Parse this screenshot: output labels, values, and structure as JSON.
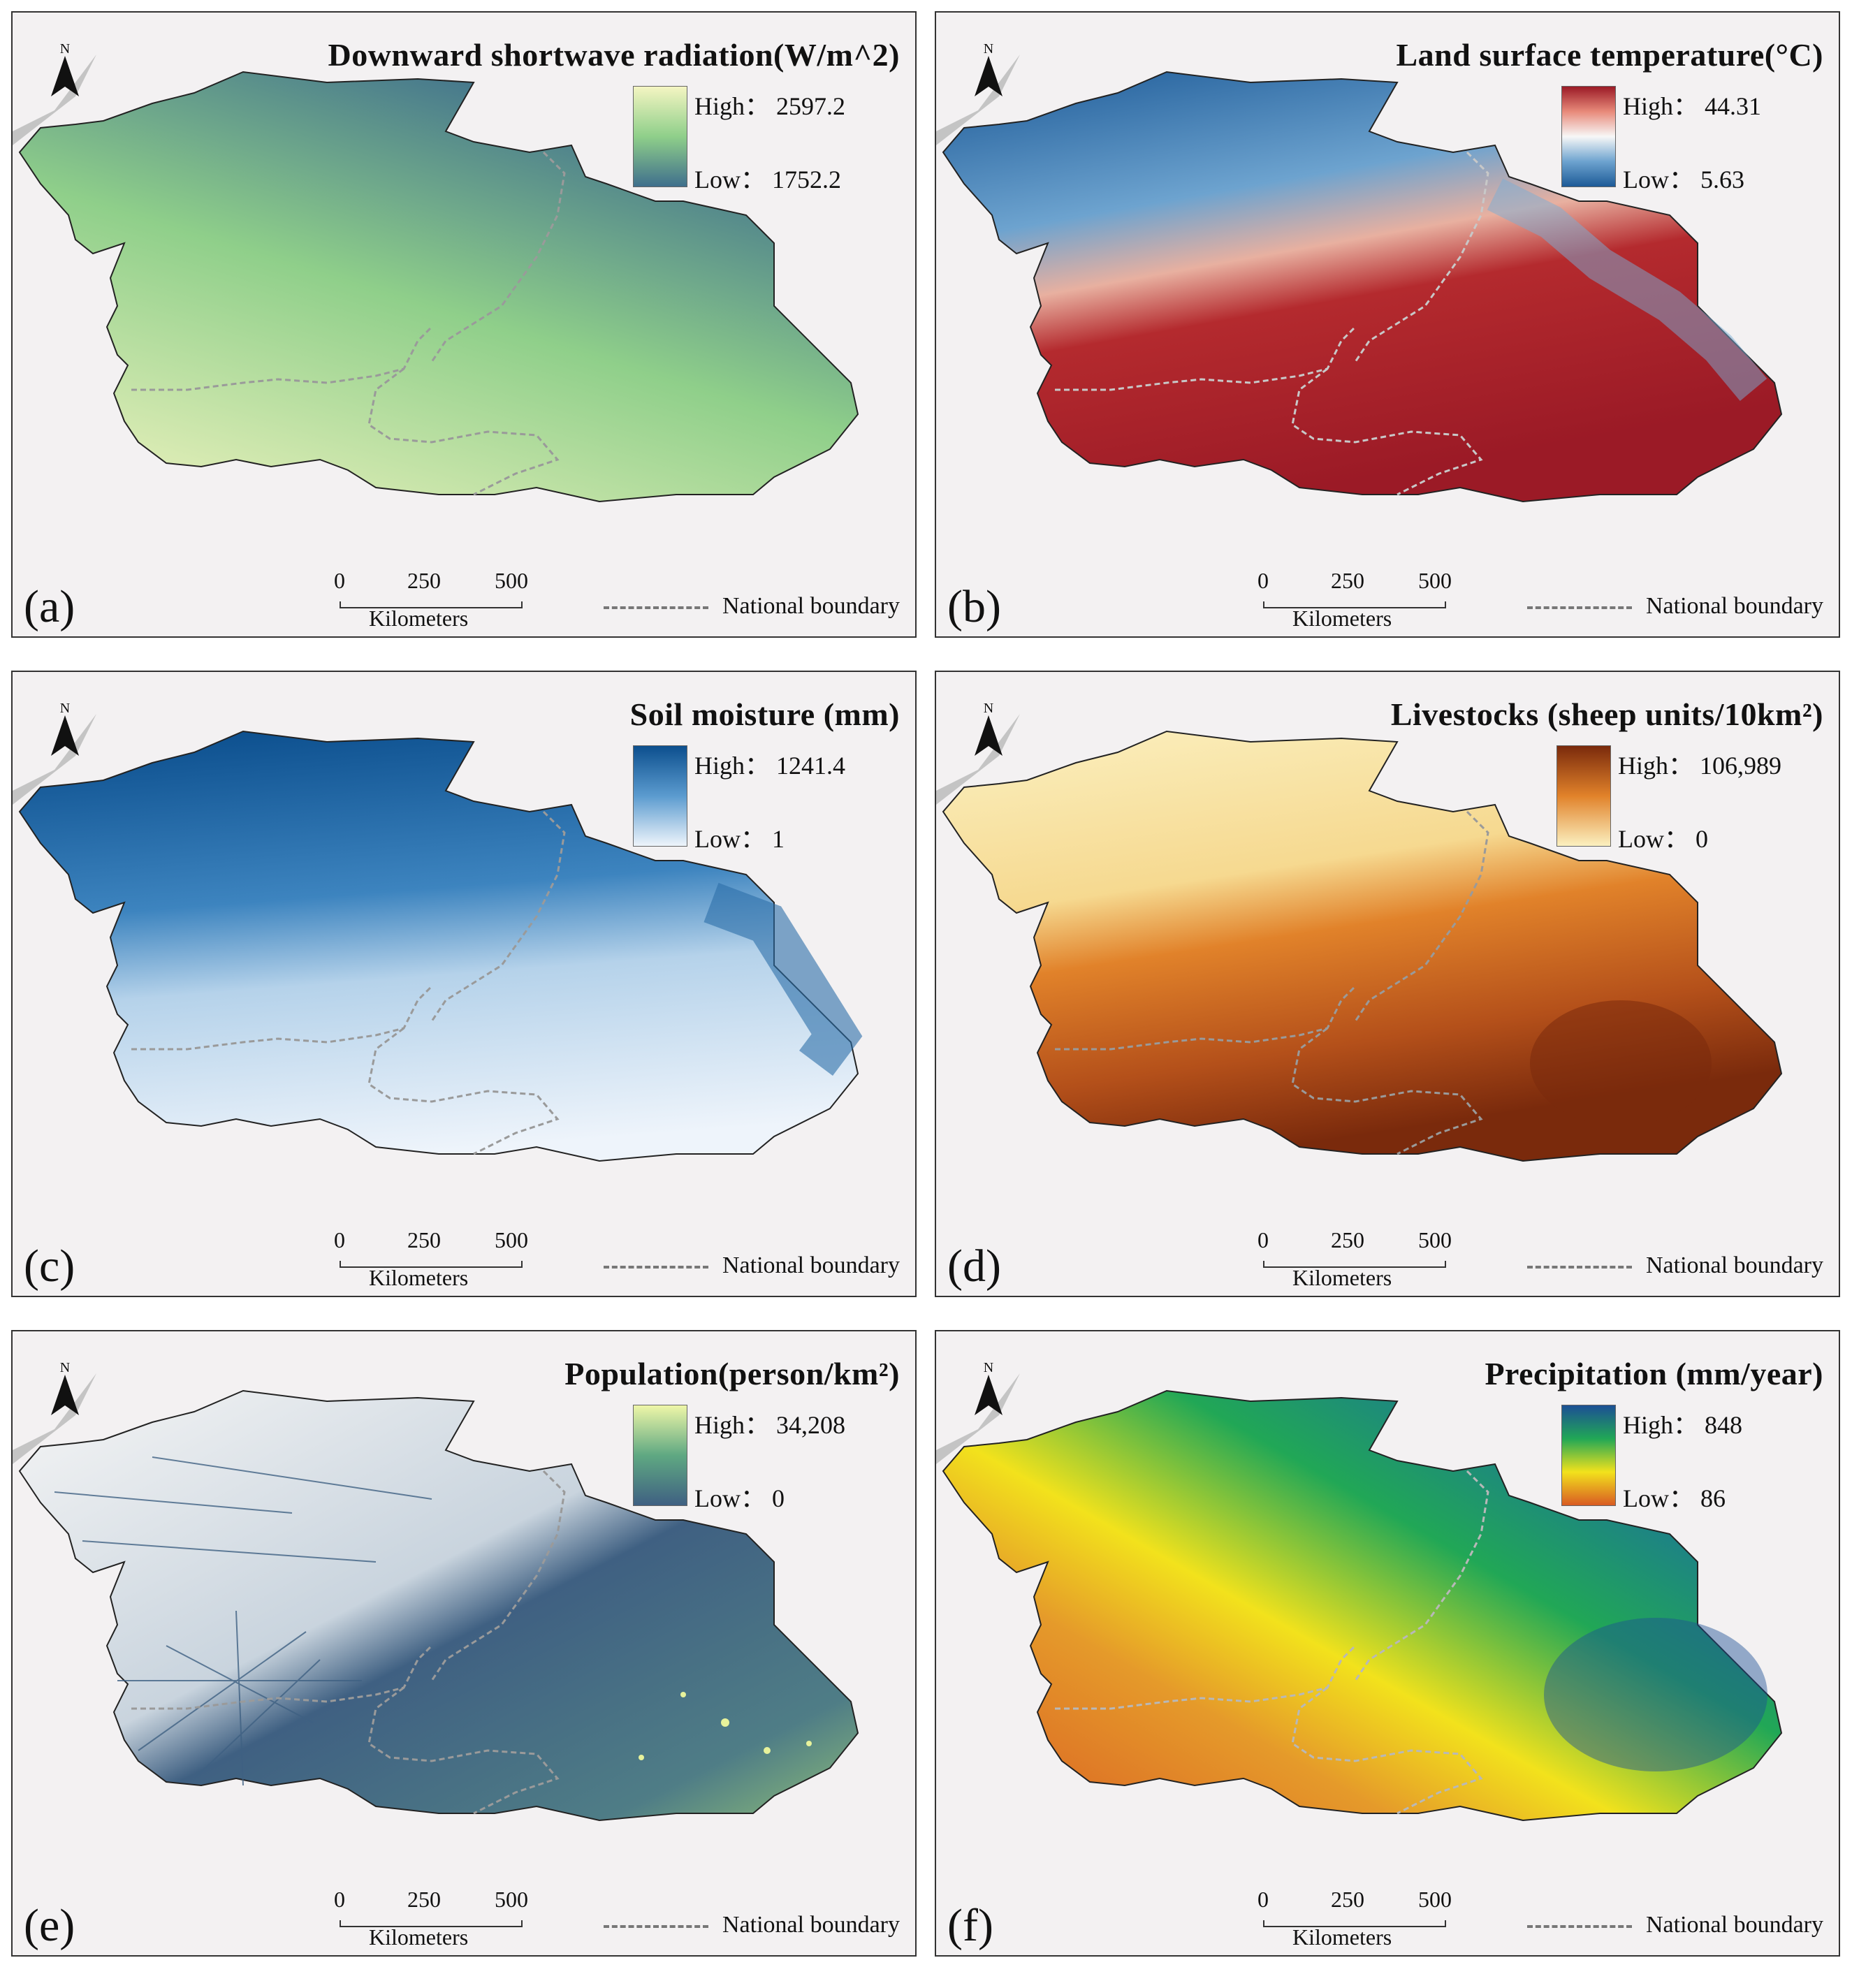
{
  "north_label": "N",
  "scale": {
    "t0": "0",
    "t250": "250",
    "t500": "500",
    "unit": "Kilometers"
  },
  "boundary_legend": "National boundary",
  "colors": {
    "frame": "#333333",
    "background": "#f3f1f2",
    "boundary": "#9a9a9a",
    "lake": "#c4c4c4"
  },
  "panels": [
    {
      "label": "(a)",
      "title": "Downward shortwave radiation(W/m^2)",
      "high": "High：  2597.2",
      "low": "Low：  1752.2",
      "ramp_hi": "#f4f5c2",
      "ramp_mid": "#7cc88a",
      "ramp_lo": "#3f6f8c"
    },
    {
      "label": "(b)",
      "title": "Land surface temperature(°C)",
      "high": "High：  44.31",
      "low": "Low：  5.63",
      "ramp_hi": "#9b1a26",
      "ramp_mid": "#f7f7f7",
      "ramp_lo": "#1d5a97"
    },
    {
      "label": "(c)",
      "title": "Soil moisture (mm)",
      "high": "High：  1241.4",
      "low": "Low：  1",
      "ramp_hi": "#0c4f8e",
      "ramp_mid": "#9cc4e0",
      "ramp_lo": "#eef4fb"
    },
    {
      "label": "(d)",
      "title": "Livestocks (sheep units/10km²)",
      "high": "High：  106,989",
      "low": "Low：  0",
      "ramp_hi": "#7a2a0c",
      "ramp_mid": "#e1822a",
      "ramp_lo": "#fbf0c0"
    },
    {
      "label": "(e)",
      "title": "Population(person/km²)",
      "high": "High：  34,208",
      "low": "Low：  0",
      "ramp_hi": "#eef6a8",
      "ramp_mid": "#5fa882",
      "ramp_lo": "#3f6082"
    },
    {
      "label": "(f)",
      "title": "Precipitation (mm/year)",
      "high": "High：  848",
      "low": "Low：  86",
      "ramp_hi": "#1c4f95",
      "ramp_mid": "#21a756",
      "ramp_lo": "#d95b23",
      "ramp_yellow": "#f2e21c"
    }
  ]
}
